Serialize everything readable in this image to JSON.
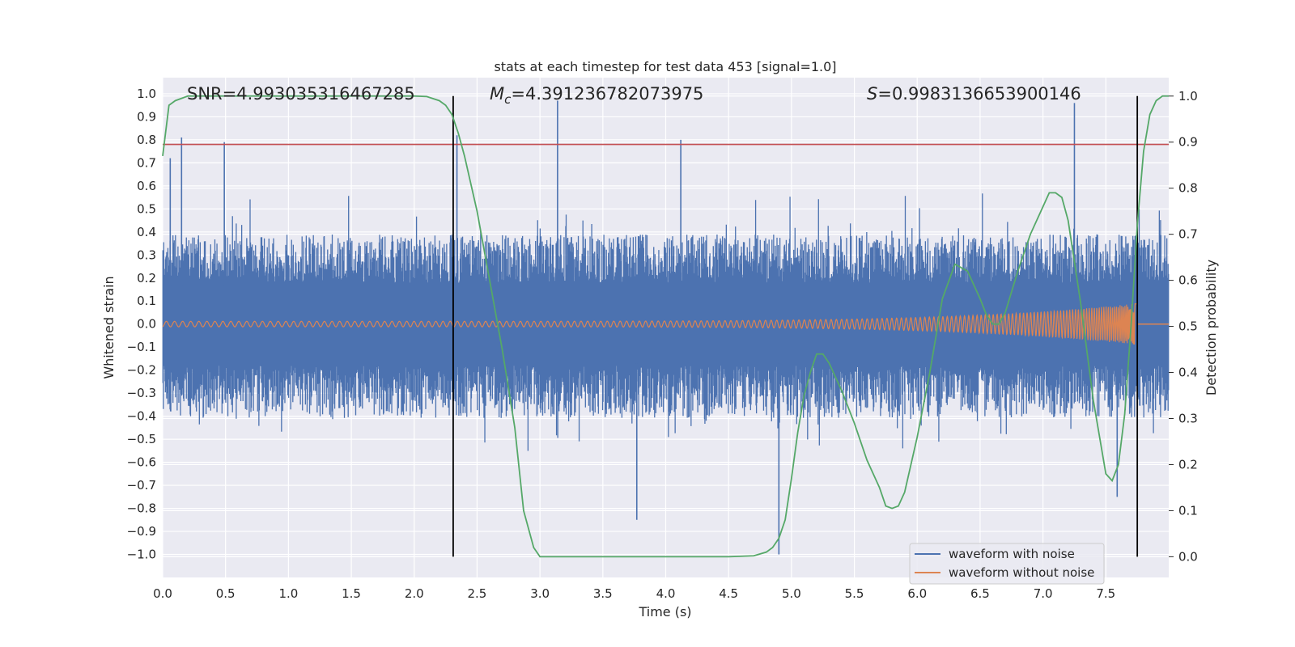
{
  "chart_data": {
    "type": "line",
    "title": "stats at each timestep for test data 453 [signal=1.0]",
    "xlabel": "Time (s)",
    "ylabel_left": "Whitened strain",
    "ylabel_right": "Detection probability",
    "xlim": [
      0.0,
      8.0
    ],
    "ylim_left": [
      -1.1,
      1.07
    ],
    "ylim_right": [
      -0.045,
      1.04
    ],
    "x_ticks": [
      "0.0",
      "0.5",
      "1.0",
      "1.5",
      "2.0",
      "2.5",
      "3.0",
      "3.5",
      "4.0",
      "4.5",
      "5.0",
      "5.5",
      "6.0",
      "6.5",
      "7.0",
      "7.5"
    ],
    "y_left_ticks": [
      "1.0",
      "0.9",
      "0.8",
      "0.7",
      "0.6",
      "0.5",
      "0.4",
      "0.3",
      "0.2",
      "0.1",
      "0.0",
      "−0.1",
      "−0.2",
      "−0.3",
      "−0.4",
      "−0.5",
      "−0.6",
      "−0.7",
      "−0.8",
      "−0.9",
      "−1.0"
    ],
    "y_right_ticks": [
      "1.0",
      "0.9",
      "0.8",
      "0.7",
      "0.6",
      "0.5",
      "0.4",
      "0.3",
      "0.2",
      "0.1",
      "0.0"
    ],
    "annotations": {
      "snr": "SNR=4.993035316467285",
      "mc_symbol": "M",
      "mc_sub": "c",
      "mc_value": "=4.391236782073975",
      "s_symbol": "S",
      "s_value": "=0.9983136653900146"
    },
    "threshold_line": {
      "y": 0.78,
      "color": "#c44e52"
    },
    "vertical_lines_x": [
      2.31,
      7.75
    ],
    "series": [
      {
        "name": "waveform with noise",
        "color": "#4c72b0",
        "description_kind": "noise",
        "envelope_typical": 0.38,
        "peaks": [
          [
            0.06,
            0.72
          ],
          [
            0.15,
            0.81
          ],
          [
            0.49,
            0.79
          ],
          [
            2.34,
            0.82
          ],
          [
            3.14,
            0.97
          ],
          [
            4.12,
            0.8
          ],
          [
            7.25,
            0.96
          ],
          [
            3.77,
            -0.85
          ],
          [
            4.9,
            -1.0
          ],
          [
            7.59,
            -0.75
          ]
        ]
      },
      {
        "name": "waveform without noise",
        "color": "#dd8452",
        "description_kind": "chirp",
        "amplitude_start": 0.012,
        "amplitude_end": 0.09,
        "merger_time": 7.75
      },
      {
        "name": "detection probability",
        "color": "#55a868",
        "axis": "right",
        "x": [
          0.0,
          0.05,
          0.1,
          0.2,
          0.5,
          1.0,
          1.5,
          2.0,
          2.1,
          2.2,
          2.25,
          2.3,
          2.35,
          2.4,
          2.5,
          2.6,
          2.7,
          2.8,
          2.87,
          2.95,
          3.0,
          3.5,
          4.0,
          4.5,
          4.7,
          4.8,
          4.85,
          4.9,
          4.95,
          5.0,
          5.05,
          5.1,
          5.15,
          5.2,
          5.25,
          5.3,
          5.4,
          5.5,
          5.6,
          5.7,
          5.75,
          5.8,
          5.85,
          5.9,
          6.0,
          6.1,
          6.2,
          6.3,
          6.4,
          6.5,
          6.55,
          6.6,
          6.65,
          6.7,
          6.8,
          6.9,
          7.0,
          7.05,
          7.1,
          7.15,
          7.2,
          7.3,
          7.4,
          7.5,
          7.55,
          7.6,
          7.65,
          7.7,
          7.75,
          7.8,
          7.85,
          7.9,
          7.95,
          8.0
        ],
        "y": [
          0.87,
          0.98,
          0.99,
          1.0,
          1.0,
          1.0,
          1.0,
          1.0,
          0.999,
          0.99,
          0.98,
          0.96,
          0.92,
          0.87,
          0.75,
          0.6,
          0.45,
          0.28,
          0.1,
          0.02,
          0.0,
          0.0,
          0.0,
          0.0,
          0.002,
          0.01,
          0.02,
          0.04,
          0.08,
          0.17,
          0.27,
          0.35,
          0.4,
          0.44,
          0.44,
          0.42,
          0.36,
          0.29,
          0.21,
          0.15,
          0.11,
          0.105,
          0.11,
          0.14,
          0.26,
          0.4,
          0.56,
          0.635,
          0.62,
          0.56,
          0.525,
          0.505,
          0.505,
          0.53,
          0.62,
          0.7,
          0.76,
          0.79,
          0.79,
          0.78,
          0.73,
          0.55,
          0.34,
          0.18,
          0.165,
          0.2,
          0.31,
          0.5,
          0.72,
          0.88,
          0.96,
          0.99,
          1.0,
          1.0
        ]
      }
    ],
    "legend": {
      "placement": "lower-right",
      "entries": [
        "waveform with noise",
        "waveform without noise"
      ]
    },
    "grid": true,
    "colors": {
      "background": "#eaeaf2",
      "grid": "#ffffff",
      "vline": "#000000"
    }
  }
}
